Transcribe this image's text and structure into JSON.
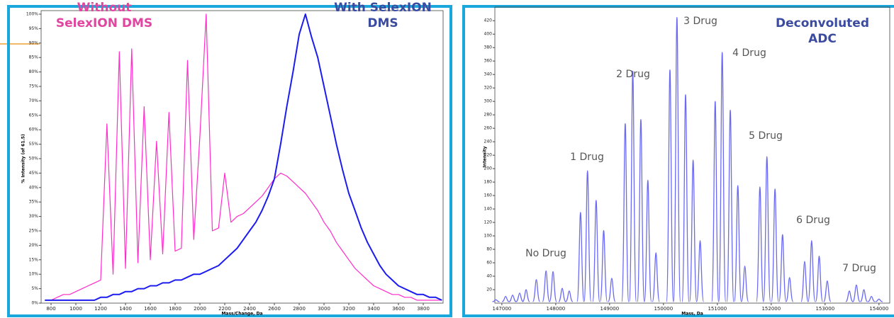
{
  "chart_data": [
    {
      "type": "line",
      "x_label": "Mass/Change, Da",
      "y_label": "% Intensity (of 61.5)",
      "xlim": [
        720,
        3960
      ],
      "ylim": [
        0,
        100
      ],
      "xticks": [
        800,
        1000,
        1200,
        1400,
        1600,
        1800,
        2000,
        2200,
        2400,
        2600,
        2800,
        3000,
        3200,
        3400,
        3600,
        3800
      ],
      "yticks": [
        {
          "value": 0,
          "label": "0%"
        },
        {
          "value": 5,
          "label": "5%"
        },
        {
          "value": 10,
          "label": "10%"
        },
        {
          "value": 15,
          "label": "15%"
        },
        {
          "value": 20,
          "label": "20%"
        },
        {
          "value": 25,
          "label": "25%"
        },
        {
          "value": 30,
          "label": "30%"
        },
        {
          "value": 35,
          "label": "35%"
        },
        {
          "value": 40,
          "label": "40%"
        },
        {
          "value": 45,
          "label": "45%"
        },
        {
          "value": 50,
          "label": "50%"
        },
        {
          "value": 55,
          "label": "55%"
        },
        {
          "value": 60,
          "label": "60%"
        },
        {
          "value": 65,
          "label": "65%"
        },
        {
          "value": 70,
          "label": "70%"
        },
        {
          "value": 75,
          "label": "75%"
        },
        {
          "value": 80,
          "label": "80%"
        },
        {
          "value": 85,
          "label": "85%"
        },
        {
          "value": 90,
          "label": "90%"
        },
        {
          "value": 95,
          "label": "95%"
        },
        {
          "value": 100,
          "label": "100%"
        }
      ],
      "x": [
        750,
        800,
        850,
        900,
        950,
        1000,
        1050,
        1100,
        1150,
        1200,
        1250,
        1300,
        1350,
        1400,
        1450,
        1500,
        1550,
        1600,
        1650,
        1700,
        1750,
        1800,
        1850,
        1900,
        1950,
        2000,
        2050,
        2100,
        2150,
        2200,
        2250,
        2300,
        2350,
        2400,
        2450,
        2500,
        2550,
        2600,
        2650,
        2700,
        2750,
        2800,
        2850,
        2900,
        2950,
        3000,
        3050,
        3100,
        3150,
        3200,
        3250,
        3300,
        3350,
        3400,
        3450,
        3500,
        3550,
        3600,
        3650,
        3700,
        3750,
        3800,
        3850,
        3900,
        3950
      ],
      "series": [
        {
          "name": "Without SelexION DMS",
          "color": "#ff2ccc",
          "values": [
            1,
            1,
            2,
            3,
            3,
            4,
            5,
            6,
            7,
            8,
            62,
            10,
            87,
            12,
            88,
            14,
            68,
            15,
            56,
            17,
            66,
            18,
            19,
            84,
            22,
            58,
            100,
            25,
            26,
            45,
            28,
            30,
            31,
            33,
            35,
            37,
            40,
            43,
            45,
            44,
            42,
            40,
            38,
            35,
            32,
            28,
            25,
            21,
            18,
            15,
            12,
            10,
            8,
            6,
            5,
            4,
            3,
            3,
            2,
            2,
            1,
            1,
            1,
            1,
            1
          ]
        },
        {
          "name": "With SelexION DMS",
          "color": "#1c1cf0",
          "values": [
            1,
            1,
            1,
            1,
            1,
            1,
            1,
            1,
            1,
            2,
            2,
            3,
            3,
            4,
            4,
            5,
            5,
            6,
            6,
            7,
            7,
            8,
            8,
            9,
            10,
            10,
            11,
            12,
            13,
            15,
            17,
            19,
            22,
            25,
            28,
            32,
            37,
            43,
            55,
            68,
            80,
            93,
            100,
            92,
            85,
            75,
            65,
            55,
            46,
            38,
            32,
            26,
            21,
            17,
            13,
            10,
            8,
            6,
            5,
            4,
            3,
            3,
            2,
            2,
            1
          ]
        }
      ]
    },
    {
      "type": "spectrum",
      "title": "Deconvoluted ADC",
      "x_label": "Mass, Da",
      "y_label": "Intensity",
      "xlim": [
        146870,
        154200
      ],
      "ylim": [
        0,
        435
      ],
      "xticks": [
        147000,
        148000,
        149000,
        150000,
        151000,
        152000,
        153000,
        154000
      ],
      "yticks": [
        20,
        40,
        60,
        80,
        100,
        120,
        140,
        160,
        180,
        200,
        220,
        240,
        260,
        280,
        300,
        320,
        340,
        360,
        380,
        400,
        420
      ],
      "annotations": [
        "No Drug",
        "1 Drug",
        "2 Drug",
        "3 Drug",
        "4 Drug",
        "5 Drug",
        "6 Drug",
        "7 Drug"
      ],
      "color": "#6a6af2",
      "x": [
        146890,
        147070,
        147200,
        147330,
        147450,
        147640,
        147820,
        147950,
        148120,
        148250,
        148460,
        148590,
        148750,
        148890,
        149040,
        149290,
        149430,
        149580,
        149710,
        149860,
        150120,
        150250,
        150410,
        150550,
        150680,
        150960,
        151090,
        151240,
        151380,
        151510,
        151790,
        151920,
        152070,
        152210,
        152340,
        152620,
        152750,
        152890,
        153040,
        153450,
        153580,
        153720,
        153860,
        154000
      ],
      "values": [
        5,
        10,
        12,
        15,
        20,
        35,
        48,
        47,
        22,
        18,
        135,
        197,
        153,
        108,
        37,
        267,
        345,
        273,
        183,
        75,
        347,
        425,
        310,
        213,
        93,
        300,
        373,
        287,
        175,
        55,
        173,
        218,
        170,
        102,
        38,
        62,
        93,
        70,
        33,
        18,
        27,
        20,
        10,
        6
      ]
    }
  ]
}
